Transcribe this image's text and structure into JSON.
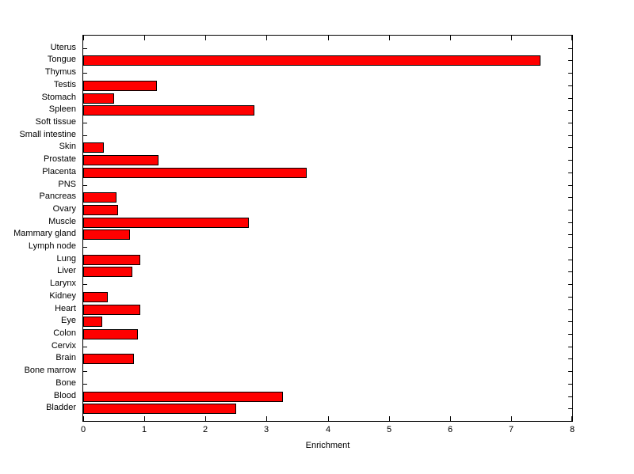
{
  "chart_data": {
    "type": "bar",
    "orientation": "horizontal",
    "title": "",
    "xlabel": "Enrichment",
    "ylabel": "",
    "xlim": [
      0,
      8
    ],
    "xticks": [
      0,
      1,
      2,
      3,
      4,
      5,
      6,
      7,
      8
    ],
    "grid": false,
    "legend": "none",
    "bar_color": "#ff0000",
    "bar_edge_color": "#000000",
    "background_color": "#ffffff",
    "categories": [
      "Uterus",
      "Tongue",
      "Thymus",
      "Testis",
      "Stomach",
      "Spleen",
      "Soft tissue",
      "Small intestine",
      "Skin",
      "Prostate",
      "Placenta",
      "PNS",
      "Pancreas",
      "Ovary",
      "Muscle",
      "Mammary gland",
      "Lymph node",
      "Lung",
      "Liver",
      "Larynx",
      "Kidney",
      "Heart",
      "Eye",
      "Colon",
      "Cervix",
      "Brain",
      "Bone marrow",
      "Bone",
      "Blood",
      "Bladder"
    ],
    "values": [
      0,
      7.48,
      0,
      1.2,
      0.5,
      2.8,
      0,
      0,
      0.34,
      1.23,
      3.66,
      0,
      0.55,
      0.57,
      2.71,
      0.76,
      0,
      0.94,
      0.81,
      0,
      0.4,
      0.93,
      0.31,
      0.9,
      0,
      0.83,
      0,
      0,
      3.27,
      2.5
    ]
  }
}
